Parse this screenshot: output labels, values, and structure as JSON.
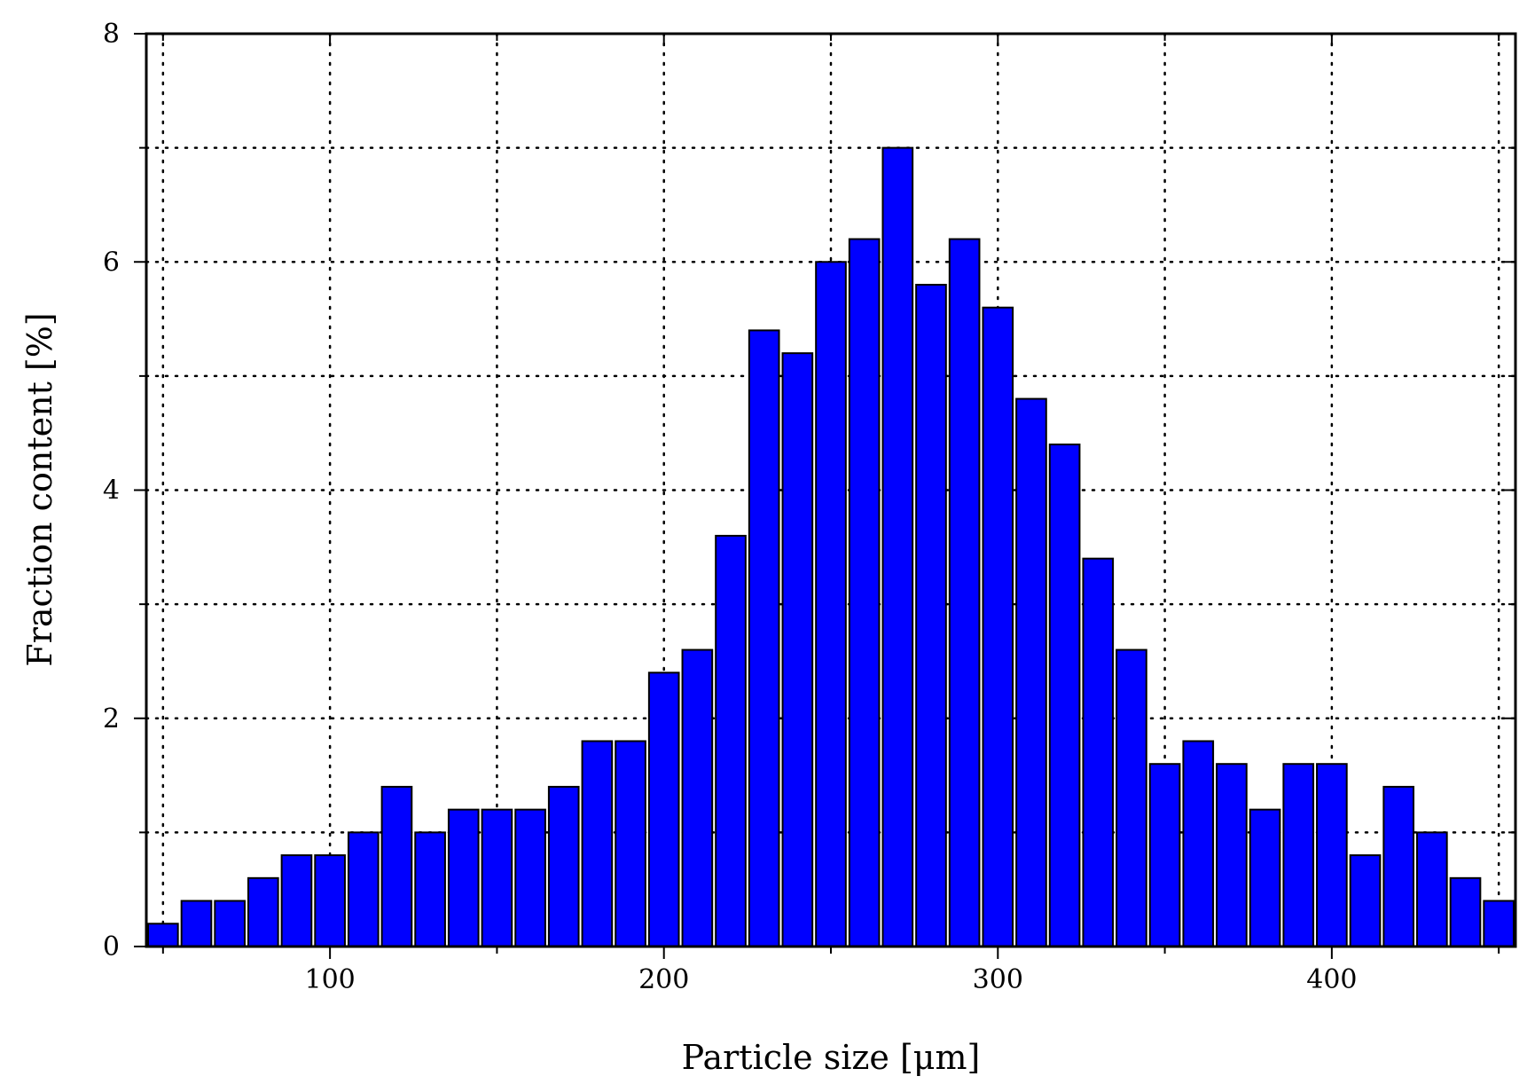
{
  "chart_data": {
    "type": "bar",
    "title": "",
    "xlabel": "Particle size [μm]",
    "ylabel": "Fraction content [%]",
    "xlim": [
      45,
      455
    ],
    "ylim": [
      0,
      8
    ],
    "x_ticks": [
      100,
      200,
      300,
      400
    ],
    "y_ticks": [
      0,
      2,
      4,
      6,
      8
    ],
    "grid": true,
    "bar_color": "#0000ff",
    "bin_width": 10,
    "x": [
      50,
      60,
      70,
      80,
      90,
      100,
      110,
      120,
      130,
      140,
      150,
      160,
      170,
      180,
      190,
      200,
      210,
      220,
      230,
      240,
      250,
      260,
      270,
      280,
      290,
      300,
      310,
      320,
      330,
      340,
      350,
      360,
      370,
      380,
      390,
      400,
      410,
      420,
      430,
      440,
      450
    ],
    "values": [
      0.2,
      0.4,
      0.4,
      0.6,
      0.8,
      0.8,
      1.0,
      1.4,
      1.0,
      1.2,
      1.2,
      1.2,
      1.4,
      1.8,
      1.8,
      2.4,
      2.6,
      3.6,
      5.4,
      5.2,
      6.0,
      6.2,
      7.0,
      5.8,
      6.2,
      5.6,
      4.8,
      4.4,
      3.4,
      2.6,
      1.6,
      1.8,
      1.6,
      1.2,
      1.6,
      1.6,
      0.8,
      1.4,
      1.0,
      0.6,
      0.4
    ]
  }
}
